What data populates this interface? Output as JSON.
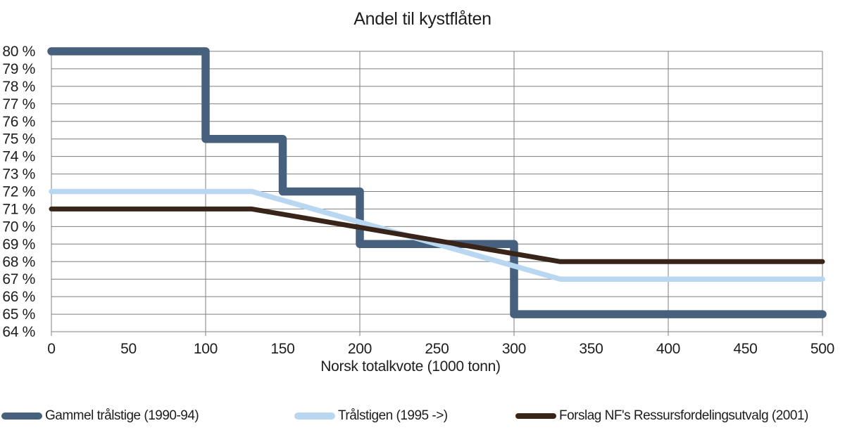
{
  "chart_data": {
    "type": "line",
    "title": "Andel til kystflåten",
    "xlabel": "Norsk totalkvote (1000 tonn)",
    "ylabel": "",
    "xlim": [
      0,
      500
    ],
    "ylim": [
      64,
      80
    ],
    "x_ticks": [
      0,
      50,
      100,
      150,
      200,
      250,
      300,
      350,
      400,
      450,
      500
    ],
    "x_gridlines": [
      100,
      200,
      300,
      400,
      500
    ],
    "y_tick_labels": [
      "80 %",
      "79 %",
      "78 %",
      "77 %",
      "76 %",
      "75 %",
      "74 %",
      "73 %",
      "72 %",
      "71 %",
      "70 %",
      "69 %",
      "68 %",
      "67 %",
      "66 %",
      "65 %",
      "64 %"
    ],
    "grid": "on",
    "legend_position": "bottom",
    "colors": {
      "grid": "#7f7f7f",
      "axis": "#7f7f7f",
      "text": "#1d1d1d"
    },
    "series": [
      {
        "name": "Gammel trålstige (1990-94)",
        "color": "#46607d",
        "stroke_width": 11.5,
        "points": [
          [
            0,
            80
          ],
          [
            100,
            80
          ],
          [
            100,
            75
          ],
          [
            150,
            75
          ],
          [
            150,
            72
          ],
          [
            200,
            72
          ],
          [
            200,
            69
          ],
          [
            300,
            69
          ],
          [
            300,
            65
          ],
          [
            500,
            65
          ]
        ]
      },
      {
        "name": "Trålstigen (1995 ->)",
        "color": "#bad7f2",
        "stroke_width": 7.5,
        "points": [
          [
            0,
            72
          ],
          [
            130,
            72
          ],
          [
            330,
            67
          ],
          [
            500,
            67
          ]
        ]
      },
      {
        "name": "Forslag NF's Ressursfordelingsutvalg (2001)",
        "color": "#392419",
        "stroke_width": 7,
        "points": [
          [
            0,
            71
          ],
          [
            130,
            71
          ],
          [
            330,
            68
          ],
          [
            500,
            68
          ]
        ]
      }
    ]
  }
}
